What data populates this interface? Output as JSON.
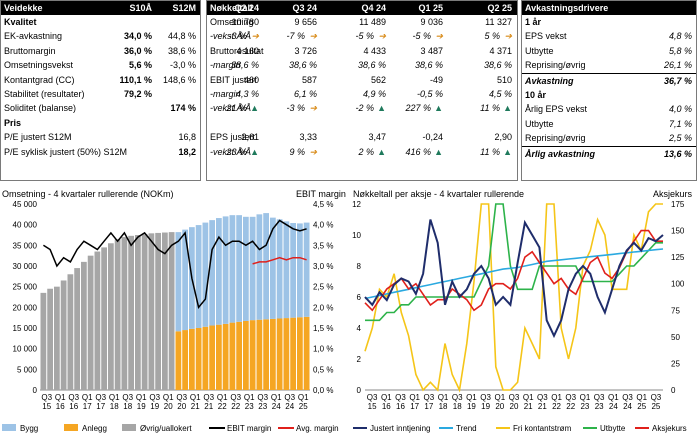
{
  "panel1": {
    "header": [
      "Veidekke",
      "S10Å",
      "S12M"
    ],
    "rows": [
      {
        "label": "Kvalitet",
        "a": "",
        "b": "",
        "bold": true
      },
      {
        "label": "EK-avkastning",
        "a": "34,0 %",
        "b": "44,8 %"
      },
      {
        "label": "Bruttomargin",
        "a": "36,0 %",
        "b": "38,6 %"
      },
      {
        "label": "Omsetningsvekst",
        "a": "5,6 %",
        "b": "-3,0 %"
      },
      {
        "label": "Kontantgrad (CC)",
        "a": "110,1 %",
        "b": "148,6 %"
      },
      {
        "label": "Stabilitet (resultater)",
        "a": "79,2 %",
        "b": ""
      },
      {
        "label": "Soliditet (balanse)",
        "a": "",
        "b": "174 %"
      },
      {
        "label": "Pris",
        "a": "",
        "b": "",
        "bold": true
      },
      {
        "label": "P/E justert S12M",
        "a": "",
        "b": "16,8"
      },
      {
        "label": "P/E syklisk justert (50%) S12M",
        "a": "",
        "b": "18,2"
      }
    ]
  },
  "panel2": {
    "header": [
      "Nøkkeltall",
      "Q2 24",
      "Q3 24",
      "Q4 24",
      "Q1 25",
      "Q2 25"
    ],
    "rows": [
      {
        "label": "Omsetning",
        "v": [
          "10 780",
          "9 656",
          "11 489",
          "9 036",
          "11 327"
        ]
      },
      {
        "label": "-vekst Å/Å",
        "v": [
          "-3 %",
          "-7 %",
          "-5 %",
          "-5 %",
          "5 %"
        ],
        "italic": true,
        "arrows": [
          "right",
          "right",
          "right",
          "right",
          "right"
        ]
      },
      {
        "label": "Bruttoresultat",
        "v": [
          "4 160",
          "3 726",
          "4 433",
          "3 487",
          "4 371"
        ]
      },
      {
        "label": "-margin",
        "v": [
          "38,6 %",
          "38,6 %",
          "38,6 %",
          "38,6 %",
          "38,6 %"
        ],
        "italic": true
      },
      {
        "label": "EBIT justert",
        "v": [
          "460",
          "587",
          "562",
          "-49",
          "510"
        ]
      },
      {
        "label": "-margin",
        "v": [
          "4,3 %",
          "6,1 %",
          "4,9 %",
          "-0,5 %",
          "4,5 %"
        ],
        "italic": true
      },
      {
        "label": "-vekst Å/Å",
        "v": [
          "21 %",
          "-3 %",
          "-2 %",
          "227 %",
          "11 %"
        ],
        "italic": true,
        "arrows": [
          "up",
          "right",
          "up",
          "up",
          "up"
        ]
      },
      {
        "label": "",
        "v": [
          "",
          "",
          "",
          "",
          ""
        ]
      },
      {
        "label": "EPS justert",
        "v": [
          "2,61",
          "3,33",
          "3,47",
          "-0,24",
          "2,90"
        ]
      },
      {
        "label": "-vekst Å/Å",
        "v": [
          "23 %",
          "9 %",
          "2 %",
          "416 %",
          "11 %"
        ],
        "italic": true,
        "arrows": [
          "up",
          "right",
          "up",
          "up",
          "up"
        ]
      }
    ]
  },
  "panel3": {
    "header": "Avkastningsdrivere",
    "rows": [
      {
        "label": "1 år",
        "v": "",
        "bold": true
      },
      {
        "label": "EPS vekst",
        "v": "4,8 %"
      },
      {
        "label": "Utbytte",
        "v": "5,8 %"
      },
      {
        "label": "Reprising/øvrig",
        "v": "26,1 %"
      },
      {
        "label": "Avkastning",
        "v": "36,7 %",
        "bold": true
      },
      {
        "label": "10 år",
        "v": "",
        "bold": true
      },
      {
        "label": "Årlig EPS vekst",
        "v": "4,0 %"
      },
      {
        "label": "Utbytte",
        "v": "7,1 %"
      },
      {
        "label": "Reprising/øvrig",
        "v": "2,5 %"
      },
      {
        "label": "Årlig avkastning",
        "v": "13,6 %",
        "bold": true
      }
    ]
  },
  "colors": {
    "bygg": "#9dc3e6",
    "anlegg": "#f5a623",
    "ovrig": "#a6a6a6",
    "ebit": "#000000",
    "avg": "#e0201b",
    "eps": "#1f2d6b",
    "trend": "#2aa9e0",
    "fcf": "#f5c518",
    "div": "#2db34a",
    "price": "#e0201b",
    "up_arrow": "#1f7a5c",
    "right_arrow": "#d98c1a"
  },
  "chart_data": [
    {
      "type": "bar",
      "title": "Omsetning - 4 kvartaler rullerende (NOKm)",
      "y2label": "EBIT margin",
      "ylim": [
        0,
        45000
      ],
      "y2lim": [
        0,
        4.5
      ],
      "yticks": [
        "0",
        "5 000",
        "10 000",
        "15 000",
        "20 000",
        "25 000",
        "30 000",
        "35 000",
        "40 000",
        "45 000"
      ],
      "y2ticks": [
        "0,0 %",
        "0,5 %",
        "1,0 %",
        "1,5 %",
        "2,0 %",
        "2,5 %",
        "3,0 %",
        "3,5 %",
        "4,0 %",
        "4,5 %"
      ],
      "xtick_labels": [
        [
          "Q3",
          "15"
        ],
        [
          "Q1",
          "16"
        ],
        [
          "Q3",
          "16"
        ],
        [
          "Q1",
          "17"
        ],
        [
          "Q3",
          "17"
        ],
        [
          "Q1",
          "18"
        ],
        [
          "Q3",
          "18"
        ],
        [
          "Q1",
          "19"
        ],
        [
          "Q3",
          "19"
        ],
        [
          "Q1",
          "20"
        ],
        [
          "Q3",
          "20"
        ],
        [
          "Q1",
          "21"
        ],
        [
          "Q3",
          "21"
        ],
        [
          "Q1",
          "22"
        ],
        [
          "Q3",
          "22"
        ],
        [
          "Q1",
          "23"
        ],
        [
          "Q3",
          "23"
        ],
        [
          "Q1",
          "24"
        ],
        [
          "Q3",
          "24"
        ],
        [
          "Q1",
          "25"
        ]
      ],
      "legend": [
        "Bygg",
        "Anlegg",
        "Øvrig/uallokert",
        "EBIT margin",
        "Avg. margin"
      ],
      "stacked_series": [
        {
          "name": "Øvrig/uallokert",
          "values": [
            23500,
            24500,
            25000,
            26500,
            28000,
            29500,
            31000,
            32500,
            33500,
            34500,
            35500,
            36500,
            37000,
            37300,
            37500,
            37700,
            37900,
            38000,
            38100,
            38200,
            0,
            0,
            0,
            0,
            0,
            0,
            0,
            0,
            0,
            0,
            0,
            0,
            0,
            0,
            0,
            0,
            0,
            0,
            0,
            0
          ]
        },
        {
          "name": "Anlegg",
          "values": [
            0,
            0,
            0,
            0,
            0,
            0,
            0,
            0,
            0,
            0,
            0,
            0,
            0,
            0,
            0,
            0,
            0,
            0,
            0,
            0,
            14200,
            14500,
            14800,
            15000,
            15300,
            15600,
            15800,
            16000,
            16300,
            16500,
            16700,
            16900,
            17000,
            17100,
            17200,
            17300,
            17400,
            17500,
            17600,
            17700
          ]
        },
        {
          "name": "Bygg",
          "values": [
            0,
            0,
            0,
            0,
            0,
            0,
            0,
            0,
            0,
            0,
            0,
            0,
            0,
            0,
            0,
            0,
            0,
            0,
            0,
            0,
            24000,
            24300,
            24600,
            24900,
            25200,
            25500,
            25800,
            26000,
            26000,
            25800,
            25200,
            25000,
            25500,
            25700,
            24500,
            24000,
            23400,
            22900,
            22700,
            22800
          ]
        }
      ],
      "line_series": [
        {
          "name": "EBIT margin",
          "values": [
            3.5,
            3.4,
            3.0,
            3.2,
            3.1,
            3.4,
            3.6,
            3.5,
            3.4,
            3.6,
            3.8,
            3.6,
            3.8,
            3.5,
            3.7,
            3.8,
            3.6,
            3.4,
            3.3,
            3.5,
            3.6,
            3.8,
            2.7,
            2.0,
            2.2,
            3.4,
            3.7,
            3.5,
            3.6,
            3.6,
            3.5,
            3.6,
            3.4,
            3.5,
            3.9,
            4.1,
            4.0,
            3.9,
            3.85,
            3.9
          ]
        },
        {
          "name": "Avg. margin",
          "values": [
            null,
            null,
            null,
            null,
            null,
            null,
            null,
            null,
            null,
            null,
            null,
            null,
            null,
            null,
            null,
            null,
            null,
            null,
            null,
            null,
            null,
            null,
            null,
            null,
            null,
            null,
            null,
            null,
            null,
            null,
            null,
            3.05,
            3.1,
            3.1,
            3.15,
            3.2,
            3.15,
            3.2,
            3.2,
            3.15
          ]
        }
      ]
    },
    {
      "type": "line",
      "title": "Nøkkeltall per aksje - 4 kvartaler rullerende",
      "y2label": "Aksjekurs",
      "ylim": [
        0,
        12
      ],
      "y2lim": [
        0,
        175
      ],
      "yticks": [
        "0",
        "2",
        "4",
        "6",
        "8",
        "10",
        "12"
      ],
      "y2ticks": [
        "0",
        "25",
        "50",
        "75",
        "100",
        "125",
        "150",
        "175"
      ],
      "xtick_labels": [
        [
          "Q3",
          "15"
        ],
        [
          "Q1",
          "16"
        ],
        [
          "Q3",
          "16"
        ],
        [
          "Q1",
          "17"
        ],
        [
          "Q3",
          "17"
        ],
        [
          "Q1",
          "18"
        ],
        [
          "Q3",
          "18"
        ],
        [
          "Q1",
          "19"
        ],
        [
          "Q3",
          "19"
        ],
        [
          "Q1",
          "20"
        ],
        [
          "Q3",
          "20"
        ],
        [
          "Q1",
          "21"
        ],
        [
          "Q3",
          "21"
        ],
        [
          "Q1",
          "22"
        ],
        [
          "Q3",
          "22"
        ],
        [
          "Q1",
          "23"
        ],
        [
          "Q3",
          "23"
        ],
        [
          "Q1",
          "24"
        ],
        [
          "Q3",
          "24"
        ],
        [
          "Q1",
          "25"
        ],
        [
          "Q3",
          "25"
        ]
      ],
      "legend": [
        "Justert inntjening",
        "Trend",
        "Fri kontantstrøm",
        "Utbytte",
        "Aksjekurs"
      ],
      "series": [
        {
          "name": "Justert inntjening",
          "values": [
            6.0,
            5.5,
            6.3,
            5.8,
            6.8,
            7.2,
            7.0,
            6.2,
            7.5,
            11.0,
            9.5,
            5.5,
            7.0,
            6.0,
            6.5,
            7.5,
            8.0,
            7.2,
            5.5,
            6.0,
            5.5,
            8.2,
            10.8,
            10.0,
            9.2,
            4.5,
            3.5,
            4.5,
            6.5,
            7.5,
            8.0,
            7.5,
            6.0,
            5.0,
            6.5,
            8.0,
            9.0,
            9.5,
            9.0,
            9.8,
            9.6,
            10.0
          ]
        },
        {
          "name": "Trend",
          "values": [
            5.9,
            6.0,
            6.1,
            6.2,
            6.3,
            6.4,
            6.5,
            6.6,
            6.7,
            6.8,
            6.9,
            7.0,
            7.1,
            7.2,
            7.3,
            7.4,
            7.5,
            7.6,
            7.7,
            7.8,
            7.85,
            7.9,
            8.0,
            8.1,
            8.2,
            8.3,
            8.35,
            8.4,
            8.45,
            8.5,
            8.55,
            8.6,
            8.65,
            8.7,
            8.75,
            8.8,
            8.85,
            8.9,
            8.95,
            9.0,
            9.05,
            9.1
          ]
        },
        {
          "name": "Fri kontantstrøm",
          "values": [
            2.5,
            4.0,
            6.5,
            6.0,
            7.5,
            5.0,
            3.5,
            1.0,
            0.0,
            0.5,
            0.0,
            3.0,
            1.0,
            0.0,
            3.0,
            7.0,
            12.5,
            12.5,
            1.5,
            0.0,
            0.0,
            0.5,
            4.0,
            3.0,
            2.0,
            12.5,
            12.0,
            4.0,
            2.0,
            4.0,
            8.0,
            9.0,
            11.0,
            10.0,
            6.5,
            6.5,
            6.5,
            10.0,
            9.0,
            11.5,
            12.5,
            12.5
          ]
        },
        {
          "name": "Utbytte",
          "values": [
            4.5,
            4.5,
            4.5,
            5.0,
            5.0,
            5.5,
            5.5,
            6.0,
            6.0,
            6.0,
            6.0,
            6.0,
            6.0,
            6.0,
            6.0,
            6.0,
            7.0,
            8.0,
            12.5,
            12.5,
            8.0,
            6.5,
            6.5,
            6.5,
            8.0,
            8.0,
            8.0,
            8.0,
            8.0,
            8.0,
            7.0,
            7.0,
            7.0,
            7.0,
            7.0,
            7.5,
            8.0,
            8.0,
            8.5,
            9.0,
            9.5,
            9.5
          ]
        },
        {
          "name": "Aksjekurs",
          "axis": "right",
          "values": [
            82,
            75,
            85,
            95,
            100,
            105,
            95,
            100,
            90,
            80,
            85,
            85,
            95,
            90,
            85,
            75,
            80,
            95,
            100,
            100,
            95,
            105,
            125,
            130,
            120,
            110,
            100,
            105,
            95,
            90,
            105,
            120,
            125,
            110,
            105,
            115,
            130,
            140,
            150,
            150,
            140,
            140
          ]
        }
      ]
    }
  ]
}
